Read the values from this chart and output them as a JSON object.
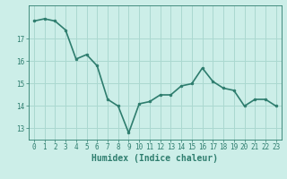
{
  "x": [
    0,
    1,
    2,
    3,
    4,
    5,
    6,
    7,
    8,
    9,
    10,
    11,
    12,
    13,
    14,
    15,
    16,
    17,
    18,
    19,
    20,
    21,
    22,
    23
  ],
  "y": [
    17.8,
    17.9,
    17.8,
    17.4,
    16.1,
    16.3,
    15.8,
    14.3,
    14.0,
    12.8,
    14.1,
    14.2,
    14.5,
    14.5,
    14.9,
    15.0,
    15.7,
    15.1,
    14.8,
    14.7,
    14.0,
    14.3,
    14.3,
    14.0
  ],
  "line_color": "#2e7d6e",
  "marker": "o",
  "marker_size": 2.0,
  "background_color": "#cceee8",
  "grid_color": "#aad8d0",
  "xlabel": "Humidex (Indice chaleur)",
  "xlim": [
    -0.5,
    23.5
  ],
  "ylim": [
    12.5,
    18.5
  ],
  "yticks": [
    13,
    14,
    15,
    16,
    17
  ],
  "xticks": [
    0,
    1,
    2,
    3,
    4,
    5,
    6,
    7,
    8,
    9,
    10,
    11,
    12,
    13,
    14,
    15,
    16,
    17,
    18,
    19,
    20,
    21,
    22,
    23
  ],
  "tick_color": "#2e7d6e",
  "label_color": "#2e7d6e",
  "xlabel_fontsize": 7,
  "tick_fontsize": 5.5,
  "line_width": 1.2
}
